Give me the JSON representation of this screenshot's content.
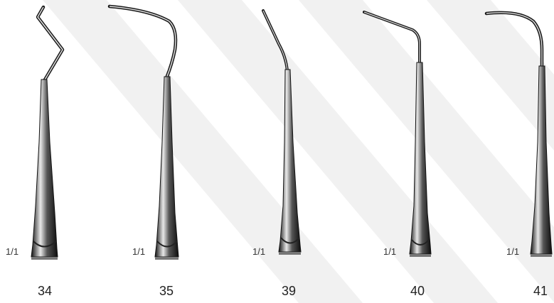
{
  "instruments": [
    {
      "number": "34",
      "scale": "1/1"
    },
    {
      "number": "35",
      "scale": "1/1"
    },
    {
      "number": "39",
      "scale": "1/1"
    },
    {
      "number": "40",
      "scale": "1/1"
    },
    {
      "number": "41",
      "scale": "1/1"
    }
  ],
  "colors": {
    "steel_dark": "#1a1a1a",
    "steel_mid": "#6d6d6d",
    "steel_light": "#d8d8d8",
    "watermark": "#f1f1f1"
  }
}
